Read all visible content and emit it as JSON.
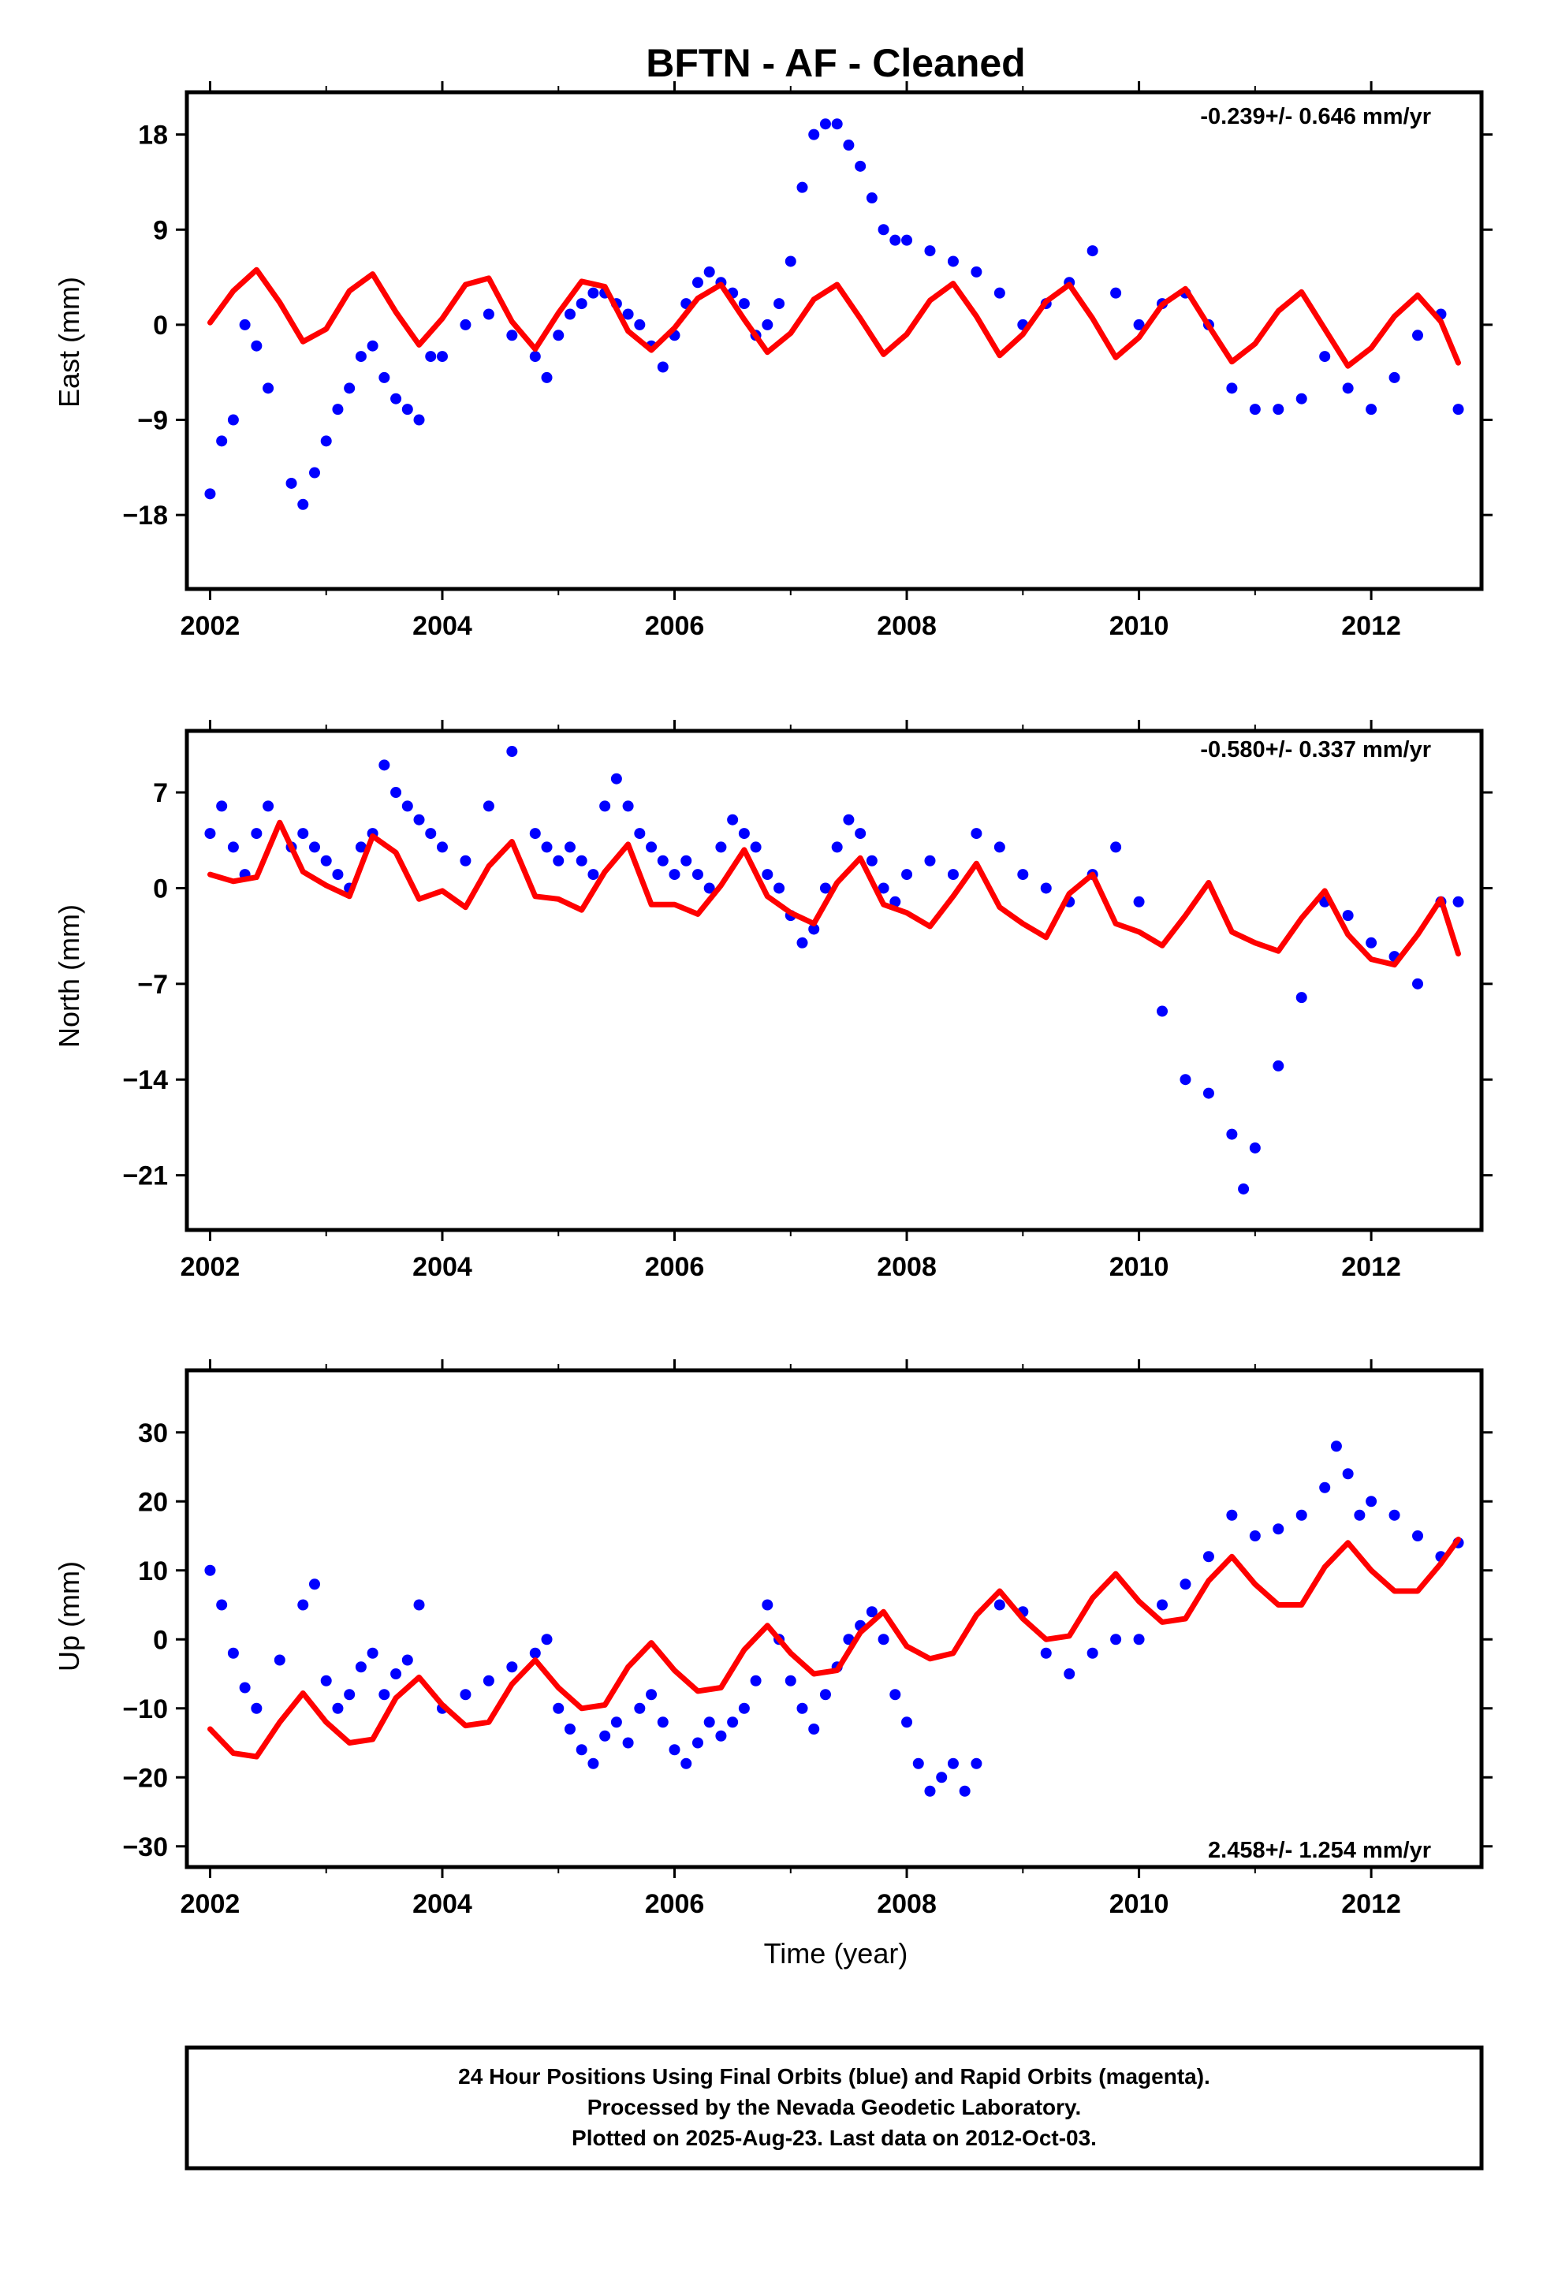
{
  "page": {
    "title": "BFTN  - AF - Cleaned",
    "xlabel": "Time (year)",
    "caption": [
      "24 Hour Positions Using Final Orbits (blue) and Rapid Orbits (magenta).",
      "Processed by the Nevada Geodetic Laboratory.",
      "Plotted on 2025-Aug-23. Last data on 2012-Oct-03."
    ]
  },
  "colors": {
    "points": "#0000ff",
    "model": "#ff0000",
    "frame": "#000000"
  },
  "chart_data": [
    {
      "type": "scatter",
      "ylabel": "East (mm)",
      "rate_label": "-0.239+/- 0.646 mm/yr",
      "rate_position": "top-right",
      "xlim": [
        2001.8,
        2012.95
      ],
      "ylim": [
        -25,
        22
      ],
      "xticks": [
        2002,
        2004,
        2006,
        2008,
        2010,
        2012
      ],
      "yticks": [
        18,
        9,
        0,
        -9,
        -18
      ],
      "ytick_labels": [
        "18",
        "9",
        "0",
        "−9",
        "−18"
      ],
      "grid": false,
      "series": [
        {
          "kind": "points",
          "x": [
            2002.0,
            2002.1,
            2002.2,
            2002.3,
            2002.4,
            2002.5,
            2002.7,
            2002.8,
            2002.9,
            2003.0,
            2003.1,
            2003.2,
            2003.3,
            2003.4,
            2003.5,
            2003.6,
            2003.7,
            2003.8,
            2003.9,
            2004.0,
            2004.2,
            2004.4,
            2004.6,
            2004.8,
            2004.9,
            2005.0,
            2005.1,
            2005.2,
            2005.3,
            2005.4,
            2005.5,
            2005.6,
            2005.7,
            2005.8,
            2005.9,
            2006.0,
            2006.1,
            2006.2,
            2006.3,
            2006.4,
            2006.5,
            2006.6,
            2006.7,
            2006.8,
            2006.9,
            2007.0,
            2007.1,
            2007.2,
            2007.3,
            2007.4,
            2007.5,
            2007.6,
            2007.7,
            2007.8,
            2007.9,
            2008.0,
            2008.2,
            2008.4,
            2008.6,
            2008.8,
            2009.0,
            2009.2,
            2009.4,
            2009.6,
            2009.8,
            2010.0,
            2010.2,
            2010.4,
            2010.6,
            2010.8,
            2011.0,
            2011.2,
            2011.4,
            2011.6,
            2011.8,
            2012.0,
            2012.2,
            2012.4,
            2012.6,
            2012.75
          ],
          "y": [
            -16,
            -11,
            -9,
            0,
            -2,
            -6,
            -15,
            -17,
            -14,
            -11,
            -8,
            -6,
            -3,
            -2,
            -5,
            -7,
            -8,
            -9,
            -3,
            -3,
            0,
            1,
            -1,
            -3,
            -5,
            -1,
            1,
            2,
            3,
            3,
            2,
            1,
            0,
            -2,
            -4,
            -1,
            2,
            4,
            5,
            4,
            3,
            2,
            -1,
            0,
            2,
            6,
            13,
            18,
            19,
            19,
            17,
            15,
            12,
            9,
            8,
            8,
            7,
            6,
            5,
            3,
            0,
            2,
            4,
            7,
            3,
            0,
            2,
            3,
            0,
            -6,
            -8,
            -8,
            -7,
            -3,
            -6,
            -8,
            -5,
            -1,
            1,
            -8
          ]
        },
        {
          "kind": "model",
          "x": [
            2002.0,
            2002.2,
            2002.4,
            2002.6,
            2002.8,
            2003.0,
            2003.2,
            2003.4,
            2003.6,
            2003.8,
            2004.0,
            2004.2,
            2004.4,
            2004.6,
            2004.8,
            2005.0,
            2005.2,
            2005.4,
            2005.6,
            2005.8,
            2006.0,
            2006.2,
            2006.4,
            2006.6,
            2006.8,
            2007.0,
            2007.2,
            2007.4,
            2007.6,
            2007.8,
            2008.0,
            2008.2,
            2008.4,
            2008.6,
            2008.8,
            2009.0,
            2009.2,
            2009.4,
            2009.6,
            2009.8,
            2010.0,
            2010.2,
            2010.4,
            2010.6,
            2010.8,
            2011.0,
            2011.2,
            2011.4,
            2011.6,
            2011.8,
            2012.0,
            2012.2,
            2012.4,
            2012.6,
            2012.75
          ],
          "y": [
            0.2,
            3.2,
            5.2,
            2.1,
            -1.6,
            -0.4,
            3.2,
            4.8,
            1.2,
            -1.9,
            0.6,
            3.8,
            4.4,
            0.3,
            -2.3,
            1.1,
            4.1,
            3.6,
            -0.6,
            -2.4,
            -0.3,
            2.5,
            3.8,
            0.5,
            -2.6,
            -0.8,
            2.4,
            3.8,
            0.6,
            -2.8,
            -0.9,
            2.3,
            3.9,
            0.8,
            -2.9,
            -0.9,
            2.2,
            3.8,
            0.6,
            -3.1,
            -1.2,
            1.9,
            3.4,
            -0.1,
            -3.5,
            -1.8,
            1.3,
            3.1,
            -0.4,
            -3.9,
            -2.2,
            0.8,
            2.8,
            0.3,
            -3.6
          ]
        }
      ]
    },
    {
      "type": "scatter",
      "ylabel": "North (mm)",
      "rate_label": "-0.580+/- 0.337 mm/yr",
      "rate_position": "top-right",
      "xlim": [
        2001.8,
        2012.95
      ],
      "ylim": [
        -25,
        11.5
      ],
      "xticks": [
        2002,
        2004,
        2006,
        2008,
        2010,
        2012
      ],
      "yticks": [
        7,
        0,
        -7,
        -14,
        -21
      ],
      "ytick_labels": [
        "7",
        "0",
        "−7",
        "−14",
        "−21"
      ],
      "grid": false,
      "series": [
        {
          "kind": "points",
          "x": [
            2002.0,
            2002.1,
            2002.2,
            2002.3,
            2002.4,
            2002.5,
            2002.7,
            2002.8,
            2002.9,
            2003.0,
            2003.1,
            2003.2,
            2003.3,
            2003.4,
            2003.5,
            2003.6,
            2003.7,
            2003.8,
            2003.9,
            2004.0,
            2004.2,
            2004.4,
            2004.6,
            2004.8,
            2004.9,
            2005.0,
            2005.1,
            2005.2,
            2005.3,
            2005.4,
            2005.5,
            2005.6,
            2005.7,
            2005.8,
            2005.9,
            2006.0,
            2006.1,
            2006.2,
            2006.3,
            2006.4,
            2006.5,
            2006.6,
            2006.7,
            2006.8,
            2006.9,
            2007.0,
            2007.1,
            2007.2,
            2007.3,
            2007.4,
            2007.5,
            2007.6,
            2007.7,
            2007.8,
            2007.9,
            2008.0,
            2008.2,
            2008.4,
            2008.6,
            2008.8,
            2009.0,
            2009.2,
            2009.4,
            2009.6,
            2009.8,
            2010.0,
            2010.2,
            2010.4,
            2010.6,
            2010.8,
            2010.9,
            2011.0,
            2011.2,
            2011.4,
            2011.6,
            2011.8,
            2012.0,
            2012.2,
            2012.4,
            2012.6,
            2012.75
          ],
          "y": [
            4,
            6,
            3,
            1,
            4,
            6,
            3,
            4,
            3,
            2,
            1,
            0,
            3,
            4,
            9,
            7,
            6,
            5,
            4,
            3,
            2,
            6,
            10,
            4,
            3,
            2,
            3,
            2,
            1,
            6,
            8,
            6,
            4,
            3,
            2,
            1,
            2,
            1,
            0,
            3,
            5,
            4,
            3,
            1,
            0,
            -2,
            -4,
            -3,
            0,
            3,
            5,
            4,
            2,
            0,
            -1,
            1,
            2,
            1,
            4,
            3,
            1,
            0,
            -1,
            1,
            3,
            -1,
            -9,
            -14,
            -15,
            -18,
            -22,
            -19,
            -13,
            -8,
            -1,
            -2,
            -4,
            -5,
            -7,
            -1,
            -1
          ]
        },
        {
          "kind": "model",
          "x": [
            2002.0,
            2002.2,
            2002.4,
            2002.6,
            2002.8,
            2003.0,
            2003.2,
            2003.4,
            2003.6,
            2003.8,
            2004.0,
            2004.2,
            2004.4,
            2004.6,
            2004.8,
            2005.0,
            2005.2,
            2005.4,
            2005.6,
            2005.8,
            2006.0,
            2006.2,
            2006.4,
            2006.6,
            2006.8,
            2007.0,
            2007.2,
            2007.4,
            2007.6,
            2007.8,
            2008.0,
            2008.2,
            2008.4,
            2008.6,
            2008.8,
            2009.0,
            2009.2,
            2009.4,
            2009.6,
            2009.8,
            2010.0,
            2010.2,
            2010.4,
            2010.6,
            2010.8,
            2011.0,
            2011.2,
            2011.4,
            2011.6,
            2011.8,
            2012.0,
            2012.2,
            2012.4,
            2012.6,
            2012.75
          ],
          "y": [
            1.0,
            0.5,
            0.8,
            4.8,
            1.2,
            0.2,
            -0.6,
            3.8,
            2.6,
            -0.8,
            -0.2,
            -1.4,
            1.6,
            3.4,
            -0.6,
            -0.8,
            -1.6,
            1.2,
            3.2,
            -1.2,
            -1.2,
            -1.9,
            0.2,
            2.8,
            -0.6,
            -1.8,
            -2.6,
            0.4,
            2.2,
            -1.2,
            -1.8,
            -2.8,
            -0.6,
            1.8,
            -1.4,
            -2.6,
            -3.6,
            -0.4,
            1.0,
            -2.6,
            -3.2,
            -4.2,
            -2.0,
            0.4,
            -3.2,
            -4.0,
            -4.6,
            -2.2,
            -0.2,
            -3.4,
            -5.2,
            -5.6,
            -3.4,
            -0.8,
            -4.8
          ]
        }
      ]
    },
    {
      "type": "scatter",
      "ylabel": "Up (mm)",
      "rate_label": "2.458+/- 1.254 mm/yr",
      "rate_position": "bottom-right",
      "xlim": [
        2001.8,
        2012.95
      ],
      "ylim": [
        -33,
        39
      ],
      "xticks": [
        2002,
        2004,
        2006,
        2008,
        2010,
        2012
      ],
      "yticks": [
        30,
        20,
        10,
        0,
        -10,
        -20,
        -30
      ],
      "ytick_labels": [
        "30",
        "20",
        "10",
        "0",
        "−10",
        "−20",
        "−30"
      ],
      "grid": false,
      "series": [
        {
          "kind": "points",
          "x": [
            2002.0,
            2002.1,
            2002.2,
            2002.3,
            2002.4,
            2002.6,
            2002.8,
            2002.9,
            2003.0,
            2003.1,
            2003.2,
            2003.3,
            2003.4,
            2003.5,
            2003.6,
            2003.7,
            2003.8,
            2004.0,
            2004.2,
            2004.4,
            2004.6,
            2004.8,
            2004.9,
            2005.0,
            2005.1,
            2005.2,
            2005.3,
            2005.4,
            2005.5,
            2005.6,
            2005.7,
            2005.8,
            2005.9,
            2006.0,
            2006.1,
            2006.2,
            2006.3,
            2006.4,
            2006.5,
            2006.6,
            2006.7,
            2006.8,
            2006.9,
            2007.0,
            2007.1,
            2007.2,
            2007.3,
            2007.4,
            2007.5,
            2007.6,
            2007.7,
            2007.8,
            2007.9,
            2008.0,
            2008.1,
            2008.2,
            2008.3,
            2008.4,
            2008.5,
            2008.6,
            2008.8,
            2009.0,
            2009.2,
            2009.4,
            2009.6,
            2009.8,
            2010.0,
            2010.2,
            2010.4,
            2010.6,
            2010.8,
            2011.0,
            2011.2,
            2011.4,
            2011.6,
            2011.7,
            2011.8,
            2011.9,
            2012.0,
            2012.2,
            2012.4,
            2012.6,
            2012.75
          ],
          "y": [
            10,
            5,
            -2,
            -7,
            -10,
            -3,
            5,
            8,
            -6,
            -10,
            -8,
            -4,
            -2,
            -8,
            -5,
            -3,
            5,
            -10,
            -8,
            -6,
            -4,
            -2,
            0,
            -10,
            -13,
            -16,
            -18,
            -14,
            -12,
            -15,
            -10,
            -8,
            -12,
            -16,
            -18,
            -15,
            -12,
            -14,
            -12,
            -10,
            -6,
            5,
            0,
            -6,
            -10,
            -13,
            -8,
            -4,
            0,
            2,
            4,
            0,
            -8,
            -12,
            -18,
            -22,
            -20,
            -18,
            -22,
            -18,
            5,
            4,
            -2,
            -5,
            -2,
            0,
            0,
            5,
            8,
            12,
            18,
            15,
            16,
            18,
            22,
            28,
            24,
            18,
            20,
            18,
            15,
            12,
            14
          ]
        },
        {
          "kind": "model",
          "x": [
            2002.0,
            2002.2,
            2002.4,
            2002.6,
            2002.8,
            2003.0,
            2003.2,
            2003.4,
            2003.6,
            2003.8,
            2004.0,
            2004.2,
            2004.4,
            2004.6,
            2004.8,
            2005.0,
            2005.2,
            2005.4,
            2005.6,
            2005.8,
            2006.0,
            2006.2,
            2006.4,
            2006.6,
            2006.8,
            2007.0,
            2007.2,
            2007.4,
            2007.6,
            2007.8,
            2008.0,
            2008.2,
            2008.4,
            2008.6,
            2008.8,
            2009.0,
            2009.2,
            2009.4,
            2009.6,
            2009.8,
            2010.0,
            2010.2,
            2010.4,
            2010.6,
            2010.8,
            2011.0,
            2011.2,
            2011.4,
            2011.6,
            2011.8,
            2012.0,
            2012.2,
            2012.4,
            2012.6,
            2012.75
          ],
          "y": [
            -13,
            -16.5,
            -17,
            -12,
            -7.8,
            -12,
            -15,
            -14.5,
            -8.5,
            -5.5,
            -9.5,
            -12.5,
            -12,
            -6.5,
            -3,
            -7,
            -10,
            -9.5,
            -4,
            -0.5,
            -4.5,
            -7.5,
            -7,
            -1.5,
            2,
            -2,
            -5,
            -4.5,
            1,
            4,
            -1,
            -2.8,
            -2,
            3.5,
            7,
            3,
            0,
            0.5,
            6,
            9.5,
            5.5,
            2.5,
            3,
            8.5,
            12,
            8,
            5,
            5,
            10.5,
            14,
            10,
            7,
            7,
            11,
            14.5
          ]
        }
      ]
    }
  ]
}
